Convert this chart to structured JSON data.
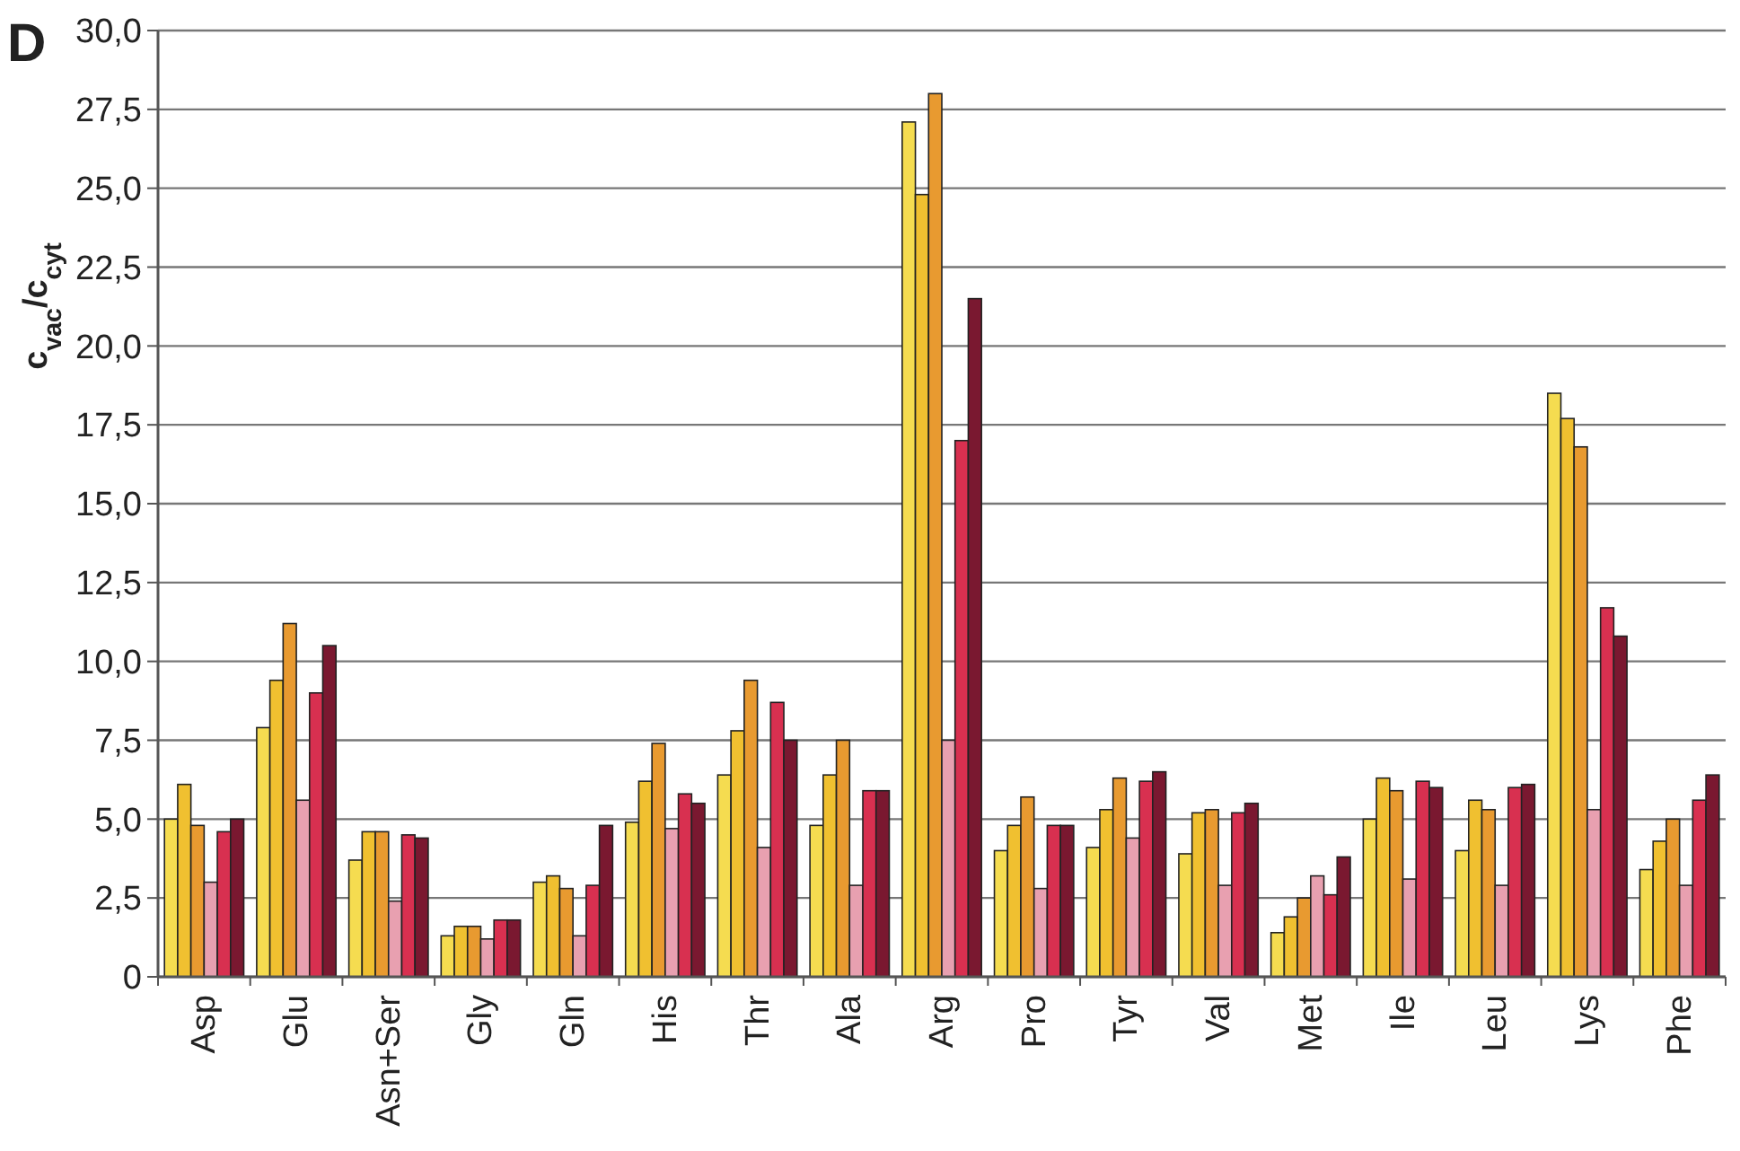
{
  "chart_data": {
    "type": "bar",
    "ylabel": "c$_{vac}$/c$_{cyt}$",
    "annotations": [
      "D"
    ],
    "categories": [
      "Asp",
      "Glu",
      "Asn+Ser",
      "Gly",
      "Gln",
      "His",
      "Thr",
      "Ala",
      "Arg",
      "Pro",
      "Tyr",
      "Val",
      "Met",
      "Ile",
      "Leu",
      "Lys",
      "Phe"
    ],
    "series": [
      {
        "color": "#f5dc50",
        "values": [
          5.0,
          7.9,
          3.7,
          1.3,
          3.0,
          4.9,
          6.4,
          4.8,
          27.1,
          4.0,
          4.1,
          3.9,
          1.4,
          5.0,
          4.0,
          18.5,
          3.4
        ]
      },
      {
        "color": "#f0c030",
        "values": [
          6.1,
          9.4,
          4.6,
          1.6,
          3.2,
          6.2,
          7.8,
          6.4,
          24.8,
          4.8,
          5.3,
          5.2,
          1.9,
          6.3,
          5.6,
          17.7,
          4.3
        ]
      },
      {
        "color": "#e89a30",
        "values": [
          4.8,
          11.2,
          4.6,
          1.6,
          2.8,
          7.4,
          9.4,
          7.5,
          28.0,
          5.7,
          6.3,
          5.3,
          2.5,
          5.9,
          5.3,
          16.8,
          5.0
        ]
      },
      {
        "color": "#e8a0b0",
        "values": [
          3.0,
          5.6,
          2.4,
          1.2,
          1.3,
          4.7,
          4.1,
          2.9,
          7.5,
          2.8,
          4.4,
          2.9,
          3.2,
          3.1,
          2.9,
          5.3,
          2.9
        ]
      },
      {
        "color": "#d83050",
        "values": [
          4.6,
          9.0,
          4.5,
          1.8,
          2.9,
          5.8,
          8.7,
          5.9,
          17.0,
          4.8,
          6.2,
          5.2,
          2.6,
          6.2,
          6.0,
          11.7,
          5.6
        ]
      },
      {
        "color": "#7a1830",
        "values": [
          5.0,
          10.5,
          4.4,
          1.8,
          4.8,
          5.5,
          7.5,
          5.9,
          21.5,
          4.8,
          6.5,
          5.5,
          3.8,
          6.0,
          6.1,
          10.8,
          6.4
        ]
      }
    ],
    "ylim": [
      0,
      30
    ],
    "yticks": [
      {
        "value": 0,
        "label": "0"
      },
      {
        "value": 2.5,
        "label": "2,5"
      },
      {
        "value": 5,
        "label": "5,0"
      },
      {
        "value": 7.5,
        "label": "7,5"
      },
      {
        "value": 10,
        "label": "10,0"
      },
      {
        "value": 12.5,
        "label": "12,5"
      },
      {
        "value": 15,
        "label": "15,0"
      },
      {
        "value": 17.5,
        "label": "17,5"
      },
      {
        "value": 20,
        "label": "20,0"
      },
      {
        "value": 22.5,
        "label": "22,5"
      },
      {
        "value": 25,
        "label": "25,0"
      },
      {
        "value": 27.5,
        "label": "27,5"
      },
      {
        "value": 30,
        "label": "30,0"
      }
    ],
    "grid": "y"
  }
}
